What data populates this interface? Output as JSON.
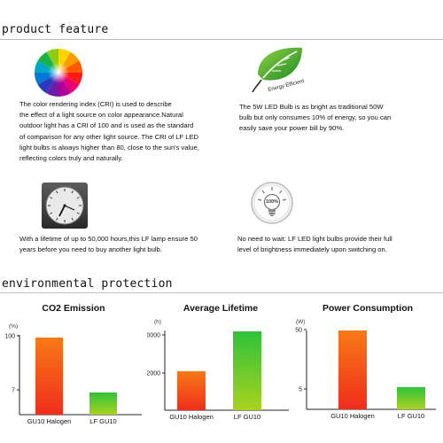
{
  "sections": {
    "feature_title": "product feature",
    "environmental_title": "environmental protection"
  },
  "features": {
    "cri": {
      "icon": "color-wheel-icon",
      "lines": [
        "The color rendering index (CRI) is used to describe",
        "the effect of a light source on color appearance.Natural",
        "outdoor light has a CRI of 100 and is used as the standard",
        "of comparison for any other light source. The CRI of LF LED",
        "light bulbs is always higher than 80, close to the sun's value,",
        "reflecting colors truly and naturally."
      ]
    },
    "energy": {
      "icon": "energy-efficient-leaf-icon",
      "badge_text": "Energy Efficient",
      "lines": [
        "The 5W LED Bulb is as bright as traditional 50W",
        "bulb but only consumes 10% of energy, so you can",
        "easily save your power bill by 90%."
      ]
    },
    "lifetime": {
      "icon": "clock-icon",
      "lines": [
        "With a lifetime of up to 50,000 hours,this LF lamp ensure 50",
        "years before you need to buy another light bulb."
      ]
    },
    "instant": {
      "icon": "light-bulb-icon",
      "badge_text": "100%",
      "lines": [
        "No need to wait: LF LED light bulbs provide their full",
        "level of brightness immediately upon switching on."
      ]
    }
  },
  "colors": {
    "halogen_top": "#f77a16",
    "halogen_bottom": "#ef2d1c",
    "led_top": "#2fc23a",
    "led_bottom": "#a9d21f",
    "axis": "#222222"
  },
  "chart_data": [
    {
      "type": "bar",
      "title": "CO2 Emission",
      "unit": "(%)",
      "categories": [
        "GU10 Halogen",
        "LF GU10"
      ],
      "values": [
        100,
        7
      ],
      "yticks": [
        "100",
        "7"
      ]
    },
    {
      "type": "bar",
      "title": "Average Lifetime",
      "unit": "(h)",
      "categories": [
        "GU10 Halogen",
        "LF GU10"
      ],
      "values": [
        2000,
        50000
      ],
      "yticks": [
        "50000",
        "2000"
      ]
    },
    {
      "type": "bar",
      "title": "Power Consumption",
      "unit": "(W)",
      "categories": [
        "GU10 Halogen",
        "LF GU10"
      ],
      "values": [
        50,
        5
      ],
      "yticks": [
        "50",
        "5"
      ]
    }
  ]
}
